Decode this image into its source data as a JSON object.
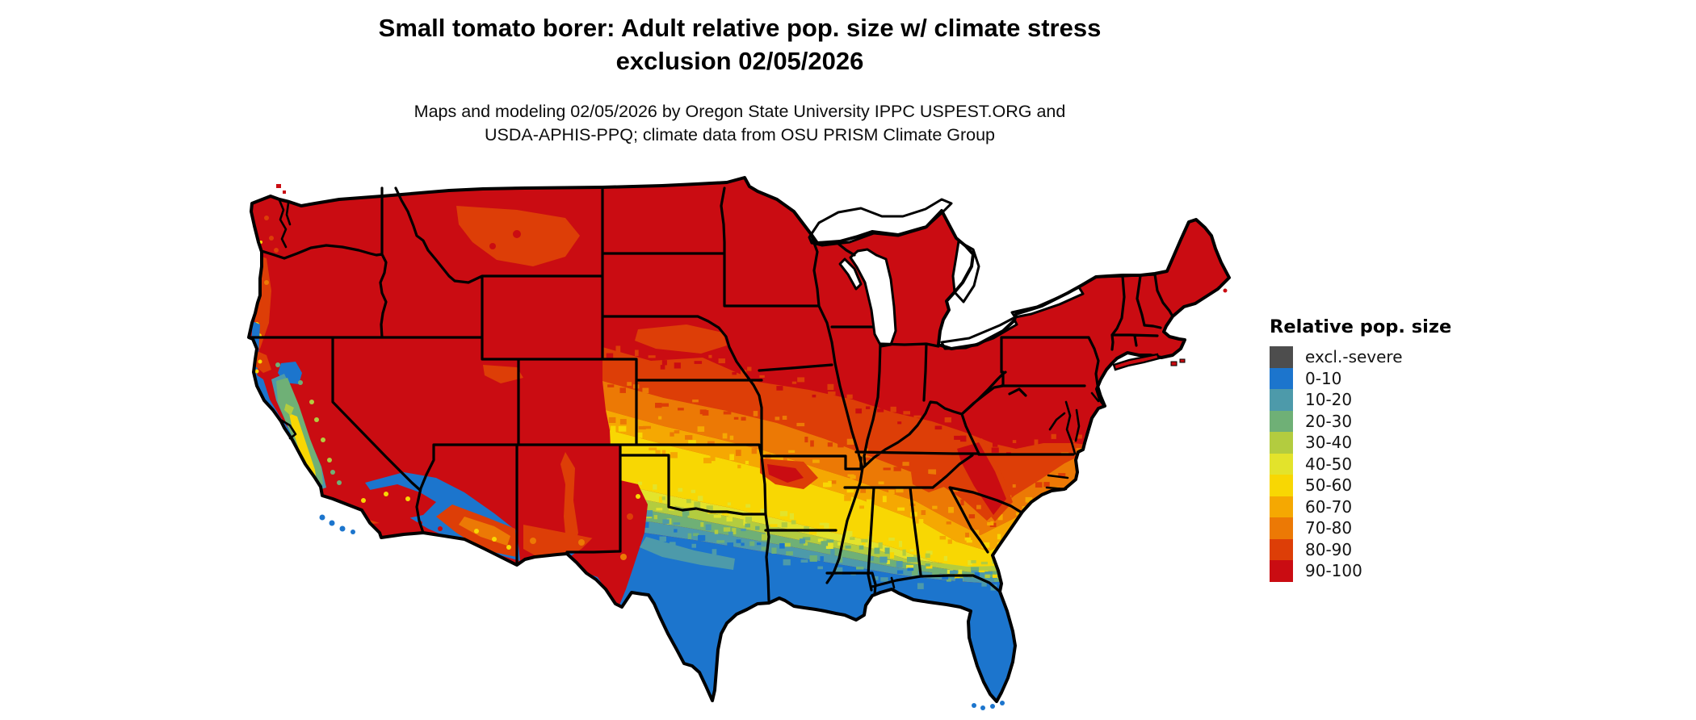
{
  "title": {
    "line1": "Small tomato borer: Adult relative pop. size w/ climate stress",
    "line2": "exclusion 02/05/2026"
  },
  "subtitle": {
    "line1": "Maps and modeling 02/05/2026 by Oregon State University IPPC USPEST.ORG and",
    "line2": "USDA-APHIS-PPQ; climate data from OSU PRISM Climate Group"
  },
  "legend": {
    "title": "Relative pop. size",
    "items": [
      {
        "label": "excl.-severe",
        "color": "#4d4d4d"
      },
      {
        "label": "0-10",
        "color": "#1c75cd"
      },
      {
        "label": "10-20",
        "color": "#4d9aaa"
      },
      {
        "label": "20-30",
        "color": "#6fb076"
      },
      {
        "label": "30-40",
        "color": "#b3cc3f"
      },
      {
        "label": "40-50",
        "color": "#e3e32b"
      },
      {
        "label": "50-60",
        "color": "#f8d703"
      },
      {
        "label": "60-70",
        "color": "#f5a802"
      },
      {
        "label": "70-80",
        "color": "#ec7905"
      },
      {
        "label": "80-90",
        "color": "#dd3e07"
      },
      {
        "label": "90-100",
        "color": "#ca0c12"
      }
    ]
  },
  "map": {
    "region": "Continental United States",
    "layer": "Adult relative population size with climate stress exclusion",
    "base_color": "#ca0c12",
    "water_color": "#ffffff",
    "boundary_color": "#000000"
  }
}
